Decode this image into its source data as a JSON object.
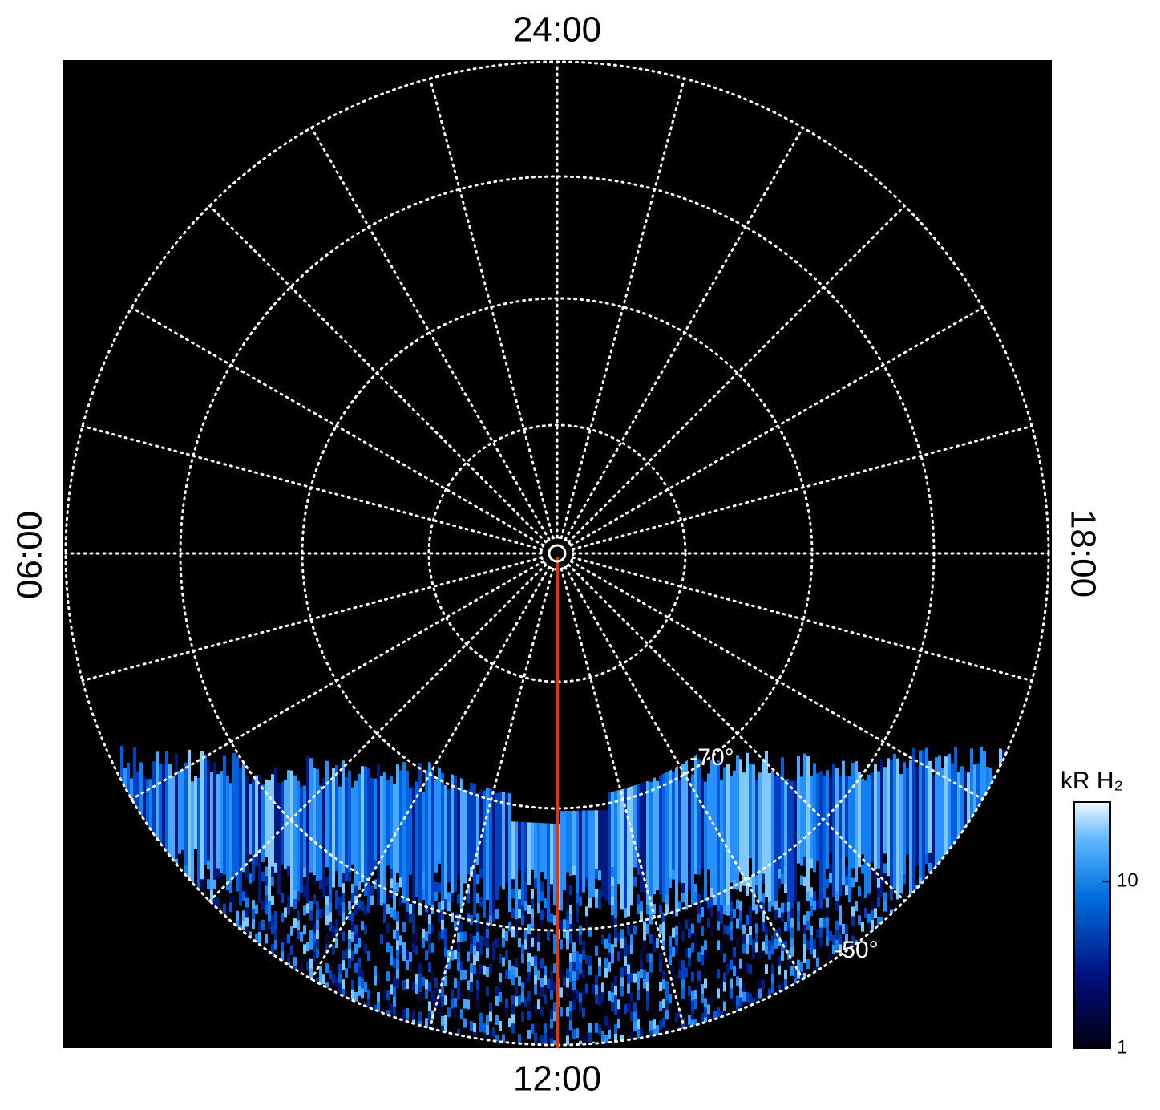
{
  "labels": {
    "top": "24:00",
    "bottom": "12:00",
    "left": "06:00",
    "right": "18:00"
  },
  "latitude_labels": [
    "-70°",
    "-50°"
  ],
  "colorbar": {
    "title": "kR H₂",
    "scale": "log",
    "lim": [
      1,
      30
    ],
    "ticks": [
      1,
      10
    ]
  }
}
